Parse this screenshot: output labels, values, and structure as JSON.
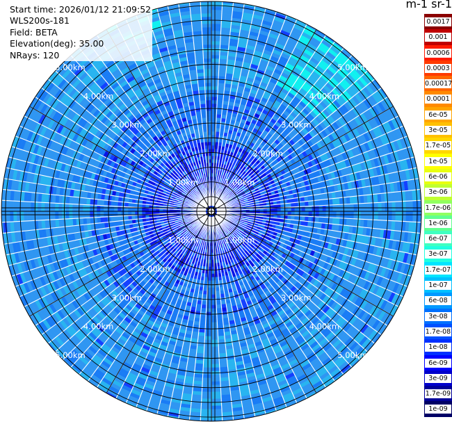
{
  "info": {
    "start_time": "Start time: 2026/01/12 21:09:52",
    "instrument": "WLS200s-181",
    "field": "Field: BETA",
    "elevation": "Elevation(deg): 35.00",
    "nrays": "NRays: 120"
  },
  "unit_label": "m-1 sr-1",
  "ring_labels": [
    "1.00km",
    "2.00km",
    "3.00km",
    "4.00km",
    "5.00km"
  ],
  "colorbar": {
    "levels": [
      "0.0017",
      "0.001",
      "0.0006",
      "0.0003",
      "0.00017",
      "0.0001",
      "6e-05",
      "3e-05",
      "1.7e-05",
      "1e-05",
      "6e-06",
      "3e-06",
      "1.7e-06",
      "1e-06",
      "6e-07",
      "3e-07",
      "1.7e-07",
      "1e-07",
      "6e-08",
      "3e-08",
      "1.7e-08",
      "1e-08",
      "6e-09",
      "3e-09",
      "1.7e-09",
      "1e-09"
    ],
    "colors": [
      "#8b0000",
      "#c00000",
      "#ff1a00",
      "#ff3a00",
      "#ff6600",
      "#ff8a00",
      "#ffa500",
      "#ffc000",
      "#ffd700",
      "#ffff00",
      "#e8ff10",
      "#c0ff30",
      "#90ff60",
      "#60ff90",
      "#40ffc0",
      "#20ffe0",
      "#00e5ff",
      "#00c0ff",
      "#0099ff",
      "#0070ff",
      "#0050ff",
      "#0030ff",
      "#0000ff",
      "#0000cc",
      "#000099",
      "#000066"
    ]
  }
}
